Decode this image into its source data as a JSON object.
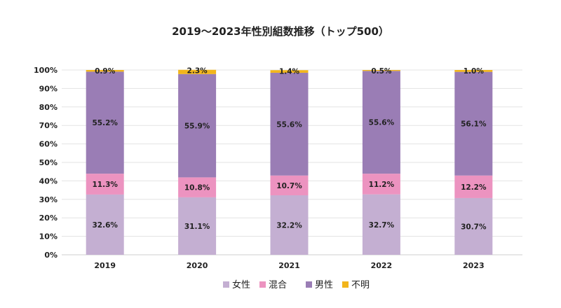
{
  "chart_data": {
    "type": "bar",
    "stacked": true,
    "percent": true,
    "title": "2019～2023年性別組数推移（トップ500）",
    "categories": [
      "2019",
      "2020",
      "2021",
      "2022",
      "2023"
    ],
    "series": [
      {
        "name": "女性",
        "color": "#c4afd2",
        "values": [
          32.6,
          31.1,
          32.2,
          32.7,
          30.7
        ],
        "labels": [
          "32.6%",
          "31.1%",
          "32.2%",
          "32.7%",
          "30.7%"
        ]
      },
      {
        "name": "混合",
        "color": "#ec93c0",
        "values": [
          11.3,
          10.8,
          10.7,
          11.2,
          12.2
        ],
        "labels": [
          "11.3%",
          "10.8%",
          "10.7%",
          "11.2%",
          "12.2%"
        ]
      },
      {
        "name": "男性",
        "color": "#9a7db5",
        "values": [
          55.2,
          55.9,
          55.6,
          55.6,
          56.1
        ],
        "labels": [
          "55.2%",
          "55.9%",
          "55.6%",
          "55.6%",
          "56.1%"
        ]
      },
      {
        "name": "不明",
        "color": "#f2b51b",
        "values": [
          0.9,
          2.3,
          1.4,
          0.5,
          1.0
        ],
        "labels": [
          "0.9%",
          "2.3%",
          "1.4%",
          "0.5%",
          "1.0%"
        ]
      }
    ],
    "yticks": [
      "0%",
      "10%",
      "20%",
      "30%",
      "40%",
      "50%",
      "60%",
      "70%",
      "80%",
      "90%",
      "100%"
    ],
    "ylim": [
      0,
      100
    ],
    "grid": true,
    "legend": "bottom"
  }
}
